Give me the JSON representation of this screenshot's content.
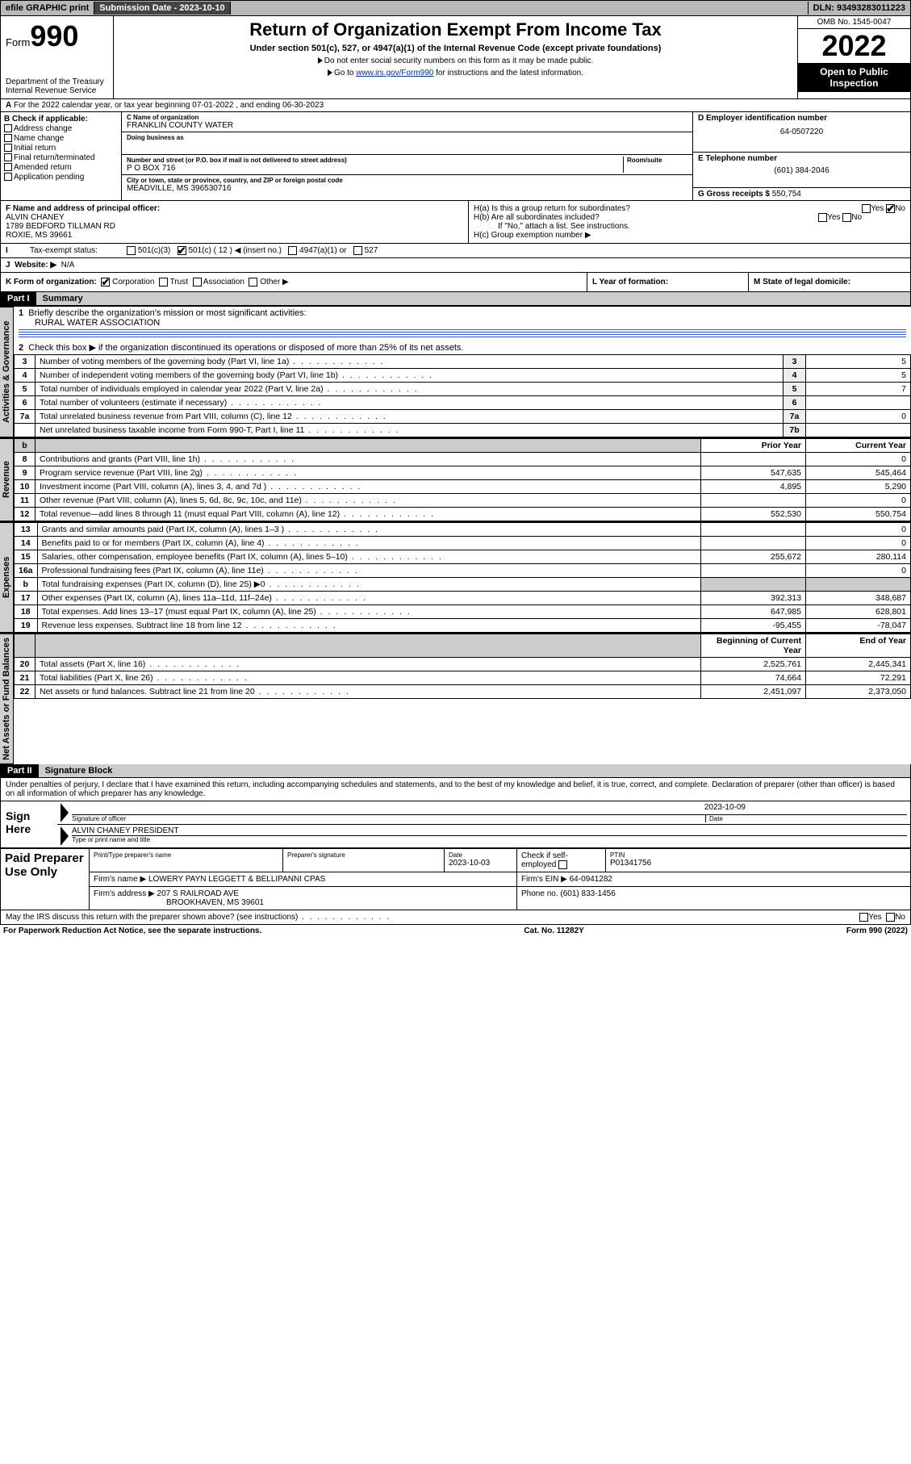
{
  "topbar": {
    "efile": "efile GRAPHIC print",
    "submission_label": "Submission Date - 2023-10-10",
    "dln": "DLN: 93493283011223"
  },
  "header": {
    "form_word": "Form",
    "form_num": "990",
    "dept": "Department of the Treasury",
    "irs": "Internal Revenue Service",
    "title": "Return of Organization Exempt From Income Tax",
    "subtitle": "Under section 501(c), 527, or 4947(a)(1) of the Internal Revenue Code (except private foundations)",
    "note1": "Do not enter social security numbers on this form as it may be made public.",
    "note2_pre": "Go to ",
    "note2_link": "www.irs.gov/Form990",
    "note2_post": " for instructions and the latest information.",
    "omb": "OMB No. 1545-0047",
    "year": "2022",
    "open": "Open to Public Inspection"
  },
  "row_a": "For the 2022 calendar year, or tax year beginning 07-01-2022   , and ending 06-30-2023",
  "box_b": {
    "title": "B Check if applicable:",
    "items": [
      "Address change",
      "Name change",
      "Initial return",
      "Final return/terminated",
      "Amended return",
      "Application pending"
    ]
  },
  "box_c": {
    "name_lbl": "C Name of organization",
    "name": "FRANKLIN COUNTY WATER",
    "dba_lbl": "Doing business as",
    "addr_lbl": "Number and street (or P.O. box if mail is not delivered to street address)",
    "room_lbl": "Room/suite",
    "addr": "P O BOX 716",
    "city_lbl": "City or town, state or province, country, and ZIP or foreign postal code",
    "city": "MEADVILLE, MS  396530716"
  },
  "box_d": {
    "lbl": "D Employer identification number",
    "val": "64-0507220"
  },
  "box_e": {
    "lbl": "E Telephone number",
    "val": "(601) 384-2046"
  },
  "box_g": {
    "lbl": "G Gross receipts $",
    "val": "550,754"
  },
  "box_f": {
    "lbl": "F  Name and address of principal officer:",
    "name": "ALVIN CHANEY",
    "addr1": "1789 BEDFORD TILLMAN RD",
    "addr2": "ROXIE, MS  39661"
  },
  "box_h": {
    "ha": "H(a)  Is this a group return for subordinates?",
    "hb": "H(b)  Are all subordinates included?",
    "hb_note": "If \"No,\" attach a list. See instructions.",
    "hc": "H(c)  Group exemption number ▶",
    "yes": "Yes",
    "no": "No"
  },
  "row_i": {
    "lbl": "Tax-exempt status:",
    "opts": [
      "501(c)(3)",
      "501(c) ( 12 ) ◀ (insert no.)",
      "4947(a)(1) or",
      "527"
    ]
  },
  "row_j": {
    "lbl": "Website: ▶",
    "val": "N/A"
  },
  "row_k": {
    "k": "K Form of organization:",
    "opts": [
      "Corporation",
      "Trust",
      "Association",
      "Other ▶"
    ],
    "l": "L Year of formation:",
    "m": "M State of legal domicile:"
  },
  "part1": {
    "hdr": "Part I",
    "title": "Summary",
    "q1": "Briefly describe the organization's mission or most significant activities:",
    "q1_val": "RURAL WATER ASSOCIATION",
    "q2": "Check this box ▶        if the organization discontinued its operations or disposed of more than 25% of its net assets.",
    "tabs": {
      "ag": "Activities & Governance",
      "rev": "Revenue",
      "exp": "Expenses",
      "na": "Net Assets or Fund Balances"
    },
    "col_prior": "Prior Year",
    "col_curr": "Current Year",
    "col_boy": "Beginning of Current Year",
    "col_eoy": "End of Year",
    "rows_ag": [
      {
        "n": "3",
        "d": "Number of voting members of the governing body (Part VI, line 1a)",
        "box": "3",
        "v": "5"
      },
      {
        "n": "4",
        "d": "Number of independent voting members of the governing body (Part VI, line 1b)",
        "box": "4",
        "v": "5"
      },
      {
        "n": "5",
        "d": "Total number of individuals employed in calendar year 2022 (Part V, line 2a)",
        "box": "5",
        "v": "7"
      },
      {
        "n": "6",
        "d": "Total number of volunteers (estimate if necessary)",
        "box": "6",
        "v": ""
      },
      {
        "n": "7a",
        "d": "Total unrelated business revenue from Part VIII, column (C), line 12",
        "box": "7a",
        "v": "0"
      },
      {
        "n": "",
        "d": "Net unrelated business taxable income from Form 990-T, Part I, line 11",
        "box": "7b",
        "v": ""
      }
    ],
    "rows_rev": [
      {
        "n": "8",
        "d": "Contributions and grants (Part VIII, line 1h)",
        "p": "",
        "c": "0"
      },
      {
        "n": "9",
        "d": "Program service revenue (Part VIII, line 2g)",
        "p": "547,635",
        "c": "545,464"
      },
      {
        "n": "10",
        "d": "Investment income (Part VIII, column (A), lines 3, 4, and 7d )",
        "p": "4,895",
        "c": "5,290"
      },
      {
        "n": "11",
        "d": "Other revenue (Part VIII, column (A), lines 5, 6d, 8c, 9c, 10c, and 11e)",
        "p": "",
        "c": "0"
      },
      {
        "n": "12",
        "d": "Total revenue—add lines 8 through 11 (must equal Part VIII, column (A), line 12)",
        "p": "552,530",
        "c": "550,754"
      }
    ],
    "rows_exp": [
      {
        "n": "13",
        "d": "Grants and similar amounts paid (Part IX, column (A), lines 1–3 )",
        "p": "",
        "c": "0"
      },
      {
        "n": "14",
        "d": "Benefits paid to or for members (Part IX, column (A), line 4)",
        "p": "",
        "c": "0"
      },
      {
        "n": "15",
        "d": "Salaries, other compensation, employee benefits (Part IX, column (A), lines 5–10)",
        "p": "255,672",
        "c": "280,114"
      },
      {
        "n": "16a",
        "d": "Professional fundraising fees (Part IX, column (A), line 11e)",
        "p": "",
        "c": "0"
      },
      {
        "n": "b",
        "d": "Total fundraising expenses (Part IX, column (D), line 25) ▶0",
        "p": "shade",
        "c": "shade"
      },
      {
        "n": "17",
        "d": "Other expenses (Part IX, column (A), lines 11a–11d, 11f–24e)",
        "p": "392,313",
        "c": "348,687"
      },
      {
        "n": "18",
        "d": "Total expenses. Add lines 13–17 (must equal Part IX, column (A), line 25)",
        "p": "647,985",
        "c": "628,801"
      },
      {
        "n": "19",
        "d": "Revenue less expenses. Subtract line 18 from line 12",
        "p": "-95,455",
        "c": "-78,047"
      }
    ],
    "rows_na": [
      {
        "n": "20",
        "d": "Total assets (Part X, line 16)",
        "p": "2,525,761",
        "c": "2,445,341"
      },
      {
        "n": "21",
        "d": "Total liabilities (Part X, line 26)",
        "p": "74,664",
        "c": "72,291"
      },
      {
        "n": "22",
        "d": "Net assets or fund balances. Subtract line 21 from line 20",
        "p": "2,451,097",
        "c": "2,373,050"
      }
    ]
  },
  "part2": {
    "hdr": "Part II",
    "title": "Signature Block",
    "decl": "Under penalties of perjury, I declare that I have examined this return, including accompanying schedules and statements, and to the best of my knowledge and belief, it is true, correct, and complete. Declaration of preparer (other than officer) is based on all information of which preparer has any knowledge.",
    "sign_here": "Sign Here",
    "sig_officer": "Signature of officer",
    "sig_date": "2023-10-09",
    "date_lbl": "Date",
    "officer_name": "ALVIN CHANEY PRESIDENT",
    "officer_lbl": "Type or print name and title",
    "paid": "Paid Preparer Use Only",
    "pt_name_lbl": "Print/Type preparer's name",
    "pt_sig_lbl": "Preparer's signature",
    "pt_date_lbl": "Date",
    "pt_date": "2023-10-03",
    "pt_check": "Check         if self-employed",
    "ptin_lbl": "PTIN",
    "ptin": "P01341756",
    "firm_name_lbl": "Firm's name    ▶",
    "firm_name": "LOWERY PAYN LEGGETT & BELLIPANNI CPAS",
    "firm_ein_lbl": "Firm's EIN ▶",
    "firm_ein": "64-0941282",
    "firm_addr_lbl": "Firm's address ▶",
    "firm_addr1": "207 S RAILROAD AVE",
    "firm_addr2": "BROOKHAVEN, MS  39601",
    "phone_lbl": "Phone no.",
    "phone": "(601) 833-1456",
    "discuss": "May the IRS discuss this return with the preparer shown above? (see instructions)"
  },
  "footer": {
    "left": "For Paperwork Reduction Act Notice, see the separate instructions.",
    "mid": "Cat. No. 11282Y",
    "right": "Form 990 (2022)"
  },
  "colors": {
    "link": "#003399",
    "topbar_bg": "#b8b8b8",
    "shade": "#cccccc"
  }
}
